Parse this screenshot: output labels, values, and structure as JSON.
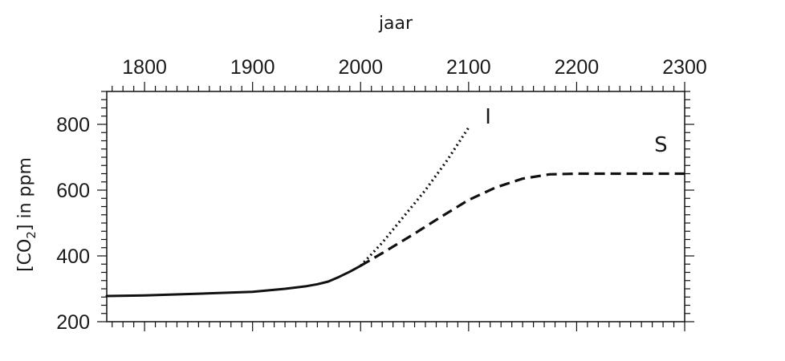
{
  "chart_data": {
    "type": "line",
    "xlabel": "jaar",
    "ylabel": "[CO2] in ppm",
    "ylabel_main": "[CO",
    "ylabel_sub": "2",
    "ylabel_rest": "] in ppm",
    "xlim": [
      1765,
      2300
    ],
    "ylim": [
      200,
      900
    ],
    "x_ticks": [
      1800,
      1900,
      2000,
      2100,
      2200,
      2300
    ],
    "y_ticks": [
      200,
      400,
      600,
      800
    ],
    "grid": false,
    "series": [
      {
        "name": "",
        "style": "solid",
        "x": [
          1765,
          1800,
          1850,
          1900,
          1930,
          1950,
          1960,
          1970,
          1980,
          1990,
          2000
        ],
        "y": [
          278,
          280,
          285,
          291,
          300,
          308,
          314,
          322,
          336,
          352,
          370
        ]
      },
      {
        "name": "I",
        "style": "dotted",
        "x": [
          2000,
          2020,
          2040,
          2060,
          2080,
          2100
        ],
        "y": [
          370,
          440,
          520,
          600,
          690,
          790
        ]
      },
      {
        "name": "S",
        "style": "dashed",
        "x": [
          2000,
          2025,
          2050,
          2075,
          2100,
          2125,
          2150,
          2175,
          2200,
          2250,
          2300
        ],
        "y": [
          370,
          418,
          468,
          520,
          570,
          608,
          635,
          648,
          650,
          650,
          650
        ]
      }
    ],
    "series_labels": [
      {
        "text": "I",
        "x": 2118,
        "y": 802
      },
      {
        "text": "S",
        "x": 2278,
        "y": 717
      }
    ]
  }
}
